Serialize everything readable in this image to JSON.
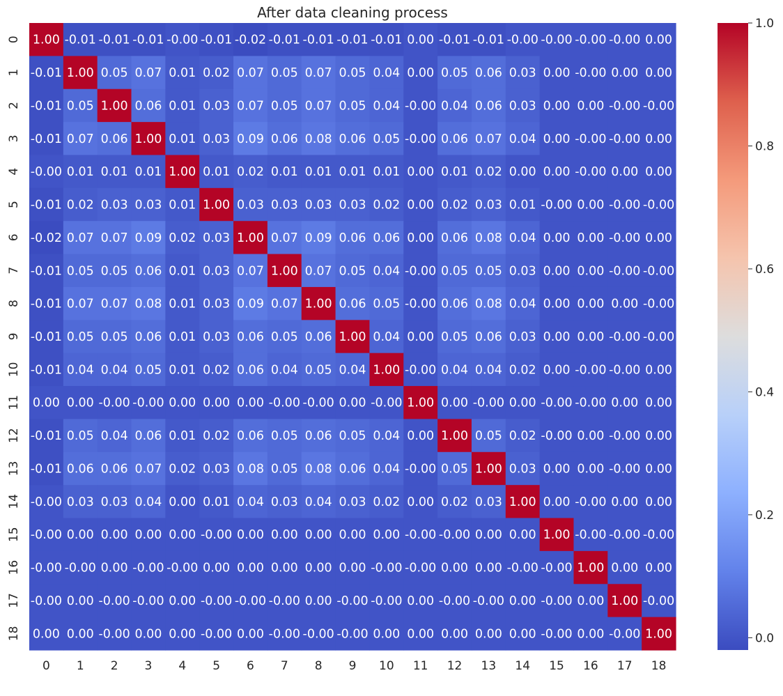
{
  "chart_data": {
    "type": "heatmap",
    "title": "After data cleaning process",
    "x_labels": [
      "0",
      "1",
      "2",
      "3",
      "4",
      "5",
      "6",
      "7",
      "8",
      "9",
      "10",
      "11",
      "12",
      "13",
      "14",
      "15",
      "16",
      "17",
      "18"
    ],
    "y_labels": [
      "0",
      "1",
      "2",
      "3",
      "4",
      "5",
      "6",
      "7",
      "8",
      "9",
      "10",
      "11",
      "12",
      "13",
      "14",
      "15",
      "16",
      "17",
      "18"
    ],
    "values": [
      [
        "1.00",
        "-0.01",
        "-0.01",
        "-0.01",
        "-0.00",
        "-0.01",
        "-0.02",
        "-0.01",
        "-0.01",
        "-0.01",
        "-0.01",
        "0.00",
        "-0.01",
        "-0.01",
        "-0.00",
        "-0.00",
        "-0.00",
        "-0.00",
        "0.00"
      ],
      [
        "-0.01",
        "1.00",
        "0.05",
        "0.07",
        "0.01",
        "0.02",
        "0.07",
        "0.05",
        "0.07",
        "0.05",
        "0.04",
        "0.00",
        "0.05",
        "0.06",
        "0.03",
        "0.00",
        "-0.00",
        "0.00",
        "0.00"
      ],
      [
        "-0.01",
        "0.05",
        "1.00",
        "0.06",
        "0.01",
        "0.03",
        "0.07",
        "0.05",
        "0.07",
        "0.05",
        "0.04",
        "-0.00",
        "0.04",
        "0.06",
        "0.03",
        "0.00",
        "0.00",
        "-0.00",
        "-0.00"
      ],
      [
        "-0.01",
        "0.07",
        "0.06",
        "1.00",
        "0.01",
        "0.03",
        "0.09",
        "0.06",
        "0.08",
        "0.06",
        "0.05",
        "-0.00",
        "0.06",
        "0.07",
        "0.04",
        "0.00",
        "-0.00",
        "-0.00",
        "0.00"
      ],
      [
        "-0.00",
        "0.01",
        "0.01",
        "0.01",
        "1.00",
        "0.01",
        "0.02",
        "0.01",
        "0.01",
        "0.01",
        "0.01",
        "0.00",
        "0.01",
        "0.02",
        "0.00",
        "0.00",
        "-0.00",
        "0.00",
        "0.00"
      ],
      [
        "-0.01",
        "0.02",
        "0.03",
        "0.03",
        "0.01",
        "1.00",
        "0.03",
        "0.03",
        "0.03",
        "0.03",
        "0.02",
        "0.00",
        "0.02",
        "0.03",
        "0.01",
        "-0.00",
        "0.00",
        "-0.00",
        "-0.00"
      ],
      [
        "-0.02",
        "0.07",
        "0.07",
        "0.09",
        "0.02",
        "0.03",
        "1.00",
        "0.07",
        "0.09",
        "0.06",
        "0.06",
        "0.00",
        "0.06",
        "0.08",
        "0.04",
        "0.00",
        "0.00",
        "-0.00",
        "0.00"
      ],
      [
        "-0.01",
        "0.05",
        "0.05",
        "0.06",
        "0.01",
        "0.03",
        "0.07",
        "1.00",
        "0.07",
        "0.05",
        "0.04",
        "-0.00",
        "0.05",
        "0.05",
        "0.03",
        "0.00",
        "0.00",
        "-0.00",
        "-0.00"
      ],
      [
        "-0.01",
        "0.07",
        "0.07",
        "0.08",
        "0.01",
        "0.03",
        "0.09",
        "0.07",
        "1.00",
        "0.06",
        "0.05",
        "-0.00",
        "0.06",
        "0.08",
        "0.04",
        "0.00",
        "0.00",
        "0.00",
        "-0.00"
      ],
      [
        "-0.01",
        "0.05",
        "0.05",
        "0.06",
        "0.01",
        "0.03",
        "0.06",
        "0.05",
        "0.06",
        "1.00",
        "0.04",
        "0.00",
        "0.05",
        "0.06",
        "0.03",
        "0.00",
        "0.00",
        "-0.00",
        "-0.00"
      ],
      [
        "-0.01",
        "0.04",
        "0.04",
        "0.05",
        "0.01",
        "0.02",
        "0.06",
        "0.04",
        "0.05",
        "0.04",
        "1.00",
        "-0.00",
        "0.04",
        "0.04",
        "0.02",
        "0.00",
        "-0.00",
        "-0.00",
        "0.00"
      ],
      [
        "0.00",
        "0.00",
        "-0.00",
        "-0.00",
        "0.00",
        "0.00",
        "0.00",
        "-0.00",
        "-0.00",
        "0.00",
        "-0.00",
        "1.00",
        "0.00",
        "-0.00",
        "0.00",
        "-0.00",
        "-0.00",
        "0.00",
        "0.00"
      ],
      [
        "-0.01",
        "0.05",
        "0.04",
        "0.06",
        "0.01",
        "0.02",
        "0.06",
        "0.05",
        "0.06",
        "0.05",
        "0.04",
        "0.00",
        "1.00",
        "0.05",
        "0.02",
        "-0.00",
        "0.00",
        "-0.00",
        "0.00"
      ],
      [
        "-0.01",
        "0.06",
        "0.06",
        "0.07",
        "0.02",
        "0.03",
        "0.08",
        "0.05",
        "0.08",
        "0.06",
        "0.04",
        "-0.00",
        "0.05",
        "1.00",
        "0.03",
        "0.00",
        "0.00",
        "-0.00",
        "0.00"
      ],
      [
        "-0.00",
        "0.03",
        "0.03",
        "0.04",
        "0.00",
        "0.01",
        "0.04",
        "0.03",
        "0.04",
        "0.03",
        "0.02",
        "0.00",
        "0.02",
        "0.03",
        "1.00",
        "0.00",
        "-0.00",
        "0.00",
        "0.00"
      ],
      [
        "-0.00",
        "0.00",
        "0.00",
        "0.00",
        "0.00",
        "-0.00",
        "0.00",
        "0.00",
        "0.00",
        "0.00",
        "0.00",
        "-0.00",
        "-0.00",
        "0.00",
        "0.00",
        "1.00",
        "-0.00",
        "-0.00",
        "-0.00"
      ],
      [
        "-0.00",
        "-0.00",
        "0.00",
        "-0.00",
        "-0.00",
        "0.00",
        "0.00",
        "0.00",
        "0.00",
        "0.00",
        "-0.00",
        "-0.00",
        "0.00",
        "0.00",
        "-0.00",
        "-0.00",
        "1.00",
        "0.00",
        "0.00"
      ],
      [
        "-0.00",
        "0.00",
        "-0.00",
        "-0.00",
        "0.00",
        "-0.00",
        "-0.00",
        "-0.00",
        "0.00",
        "-0.00",
        "-0.00",
        "0.00",
        "-0.00",
        "-0.00",
        "0.00",
        "-0.00",
        "0.00",
        "1.00",
        "-0.00"
      ],
      [
        "0.00",
        "0.00",
        "-0.00",
        "0.00",
        "0.00",
        "-0.00",
        "0.00",
        "-0.00",
        "-0.00",
        "-0.00",
        "0.00",
        "0.00",
        "0.00",
        "0.00",
        "0.00",
        "-0.00",
        "0.00",
        "-0.00",
        "1.00"
      ]
    ],
    "colorscale": "coolwarm",
    "vmin": -0.02,
    "vmax": 1.0,
    "colorbar_ticks": [
      "0.0",
      "0.2",
      "0.4",
      "0.6",
      "0.8",
      "1.0"
    ],
    "annotate": true,
    "annotation_color": "#ffffff",
    "grid": false,
    "colorbar_position": "right"
  }
}
